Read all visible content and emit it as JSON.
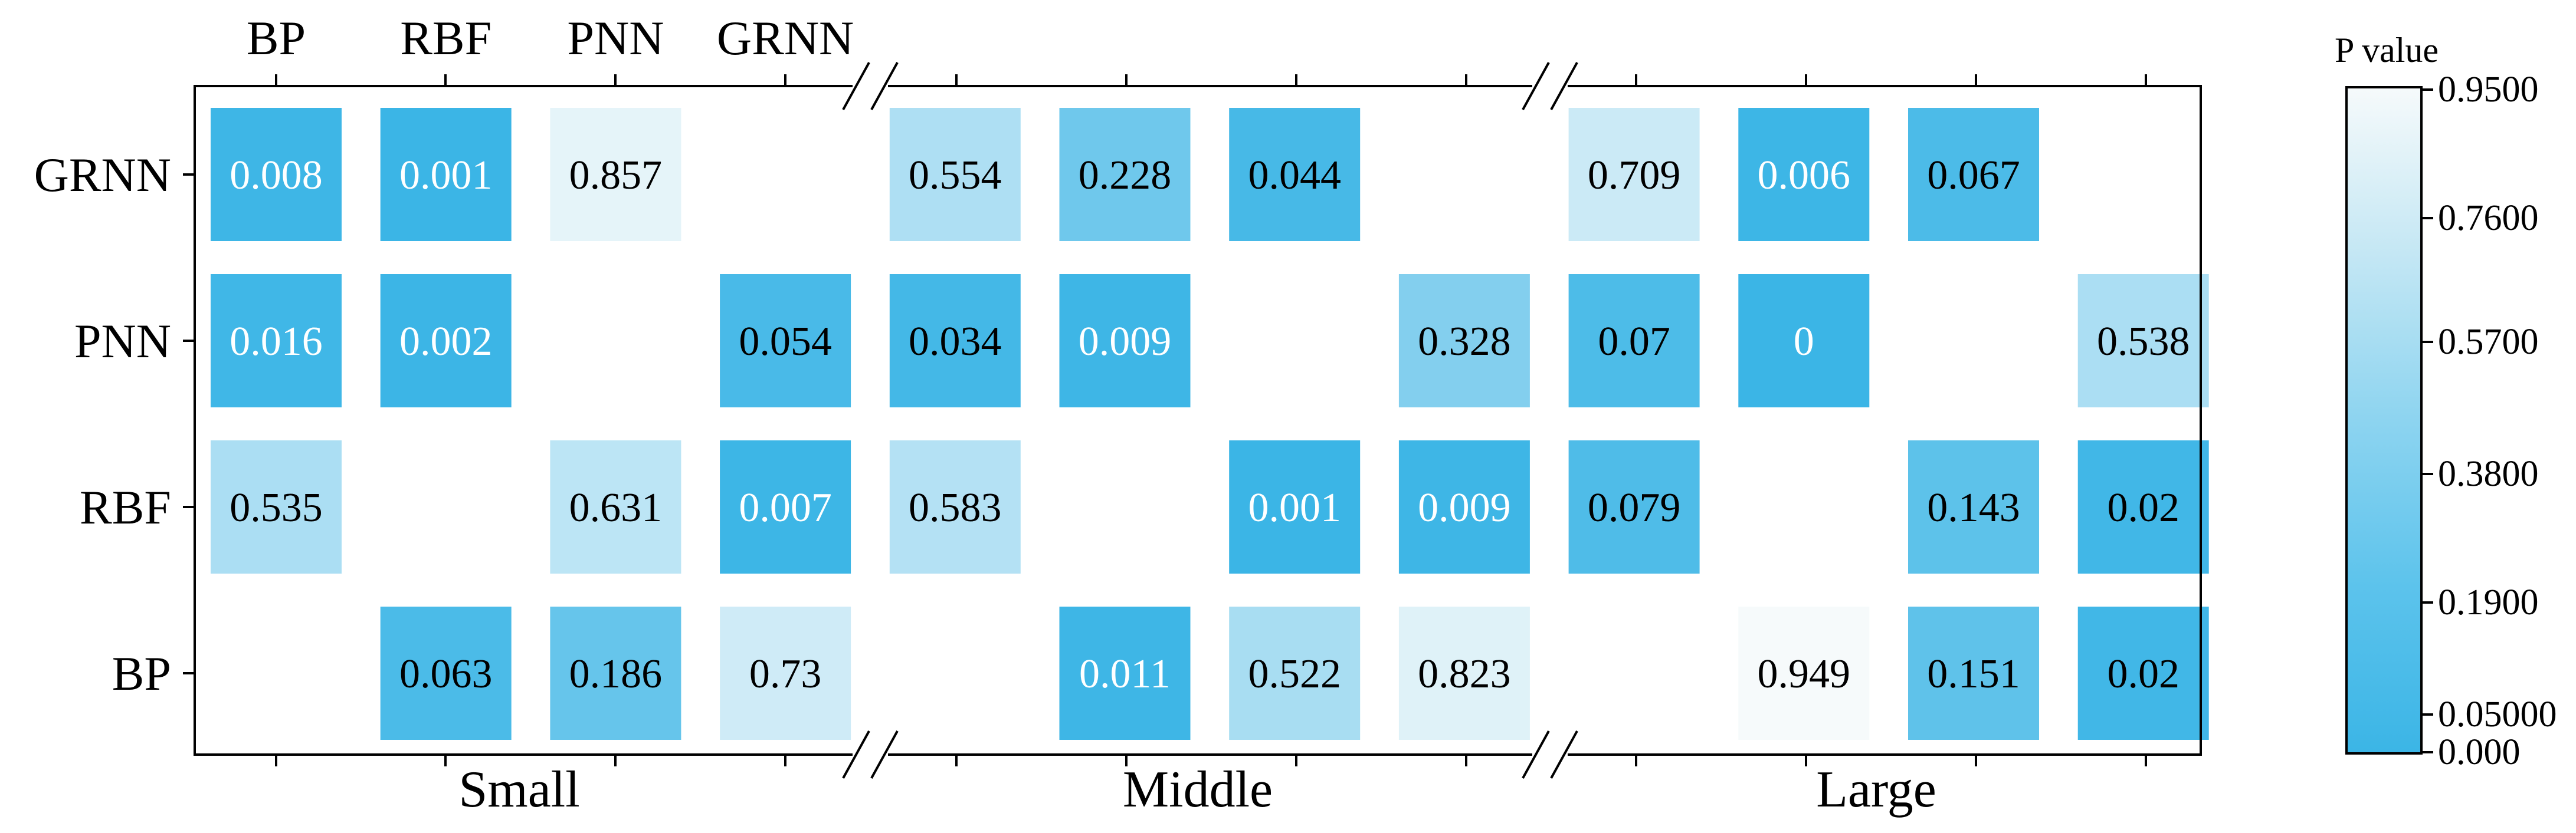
{
  "chart_data": {
    "type": "heatmap",
    "column_labels": [
      "BP",
      "RBF",
      "PNN",
      "GRNN"
    ],
    "groups": [
      "Small",
      "Middle",
      "Large"
    ],
    "row_labels": [
      "GRNN",
      "PNN",
      "RBF",
      "BP"
    ],
    "cells": [
      [
        "0.008",
        "0.001",
        "0.857",
        null,
        "0.554",
        "0.228",
        "0.044",
        null,
        "0.709",
        "0.006",
        "0.067",
        null
      ],
      [
        "0.016",
        "0.002",
        null,
        "0.054",
        "0.034",
        "0.009",
        null,
        "0.328",
        "0.07",
        "0",
        null,
        "0.538"
      ],
      [
        "0.535",
        null,
        "0.631",
        "0.007",
        "0.583",
        null,
        "0.001",
        "0.009",
        "0.079",
        null,
        "0.143",
        "0.02"
      ],
      [
        null,
        "0.063",
        "0.186",
        "0.73",
        null,
        "0.011",
        "0.522",
        "0.823",
        null,
        "0.949",
        "0.151",
        "0.02"
      ]
    ],
    "colorbar": {
      "title": "P value",
      "ticks": [
        "0.9500",
        "0.7600",
        "0.5700",
        "0.3800",
        "0.1900",
        "0.05000",
        "0.000"
      ],
      "color_low": "#3bb5e6",
      "color_high": "#f6fafb"
    }
  }
}
